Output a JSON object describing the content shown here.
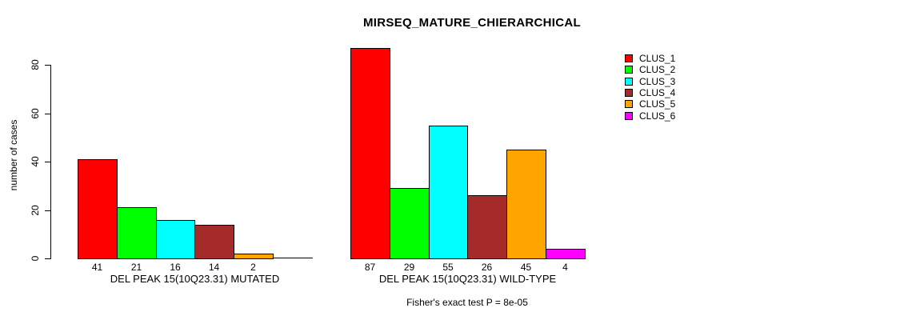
{
  "title": "MIRSEQ_MATURE_CHIERARCHICAL",
  "chart_data": {
    "type": "bar",
    "title": "MIRSEQ_MATURE_CHIERARCHICAL",
    "xlabel": "",
    "ylabel": "number of cases",
    "ylim": [
      0,
      80
    ],
    "yticks": [
      0,
      20,
      40,
      60,
      80
    ],
    "grid": false,
    "legend_position": "top-right",
    "series": [
      {
        "name": "CLUS_1",
        "color": "#ff0000"
      },
      {
        "name": "CLUS_2",
        "color": "#00ff00"
      },
      {
        "name": "CLUS_3",
        "color": "#00ffff"
      },
      {
        "name": "CLUS_4",
        "color": "#a52a2a"
      },
      {
        "name": "CLUS_5",
        "color": "#ffa500"
      },
      {
        "name": "CLUS_6",
        "color": "#ff00ff"
      }
    ],
    "groups": [
      {
        "label": "DEL PEAK 15(10Q23.31) MUTATED",
        "values": [
          41,
          21,
          16,
          14,
          2,
          0
        ],
        "bar_labels": [
          "41",
          "21",
          "16",
          "14",
          "2",
          ""
        ]
      },
      {
        "label": "DEL PEAK 15(10Q23.31) WILD-TYPE",
        "values": [
          87,
          29,
          55,
          26,
          45,
          4
        ],
        "bar_labels": [
          "87",
          "29",
          "55",
          "26",
          "45",
          "4"
        ]
      }
    ],
    "annotation": "Fisher's exact test P = 8e-05"
  }
}
